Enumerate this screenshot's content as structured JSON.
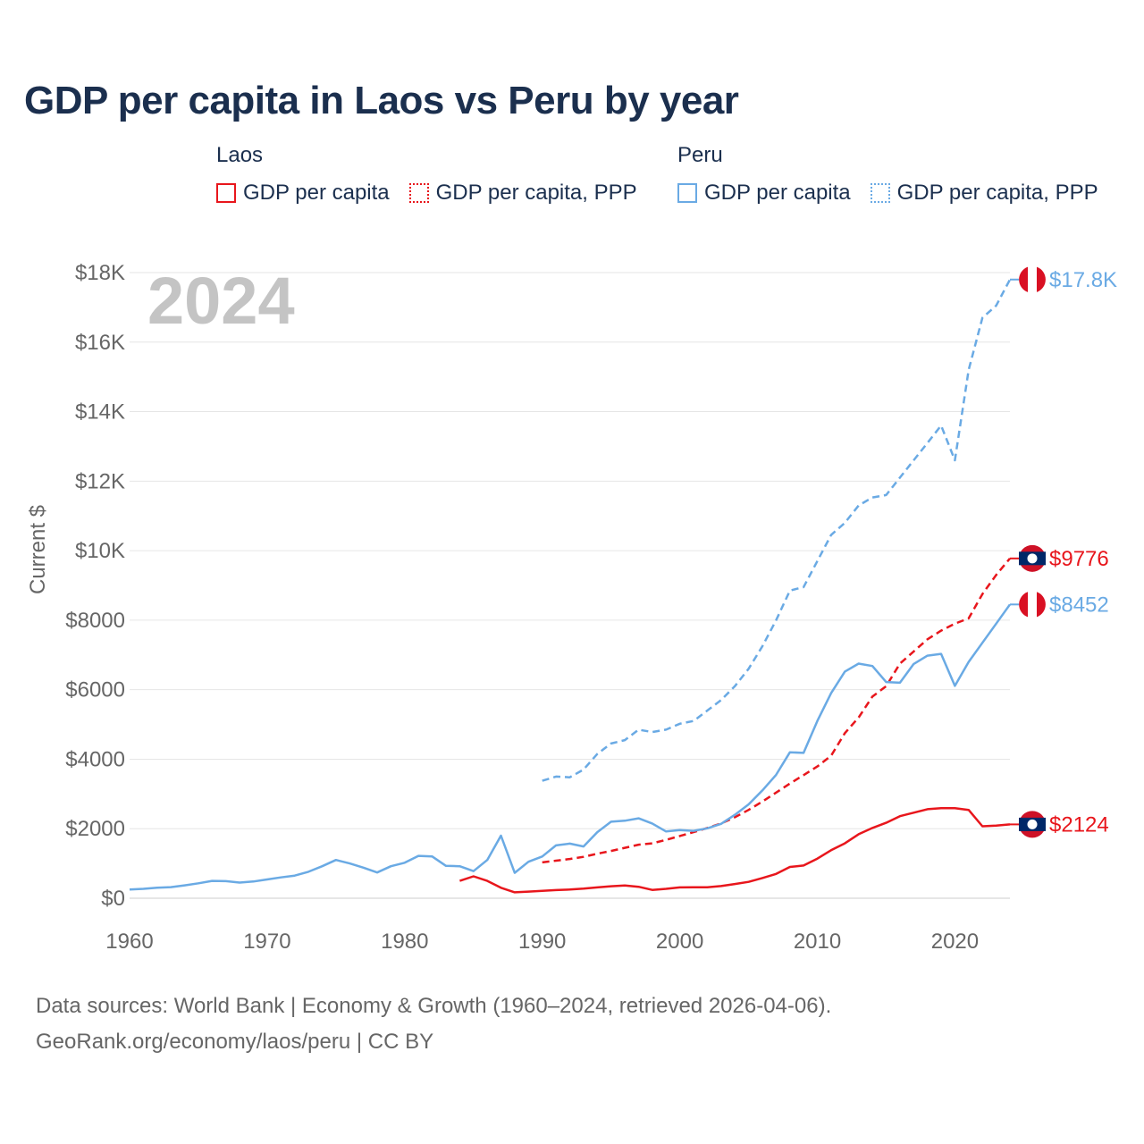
{
  "title": "GDP per capita in Laos vs Peru by year",
  "legend": {
    "groups": [
      {
        "name": "Laos",
        "items": [
          {
            "label": "GDP per capita",
            "color": "#e8161c",
            "style": "solid"
          },
          {
            "label": "GDP per capita, PPP",
            "color": "#e8161c",
            "style": "dotted"
          }
        ]
      },
      {
        "name": "Peru",
        "items": [
          {
            "label": "GDP per capita",
            "color": "#6aaae4",
            "style": "solid"
          },
          {
            "label": "GDP per capita, PPP",
            "color": "#6aaae4",
            "style": "dotted"
          }
        ]
      }
    ]
  },
  "footer": {
    "line1": "Data sources: World Bank | Economy & Growth (1960–2024, retrieved 2026-04-06).",
    "line2": "GeoRank.org/economy/laos/peru | CC BY"
  },
  "chart_data": {
    "type": "line",
    "year_label": "2024",
    "ylabel": "Current $",
    "xlim": [
      1960,
      2024
    ],
    "ylim": [
      0,
      18000
    ],
    "x_ticks": [
      1960,
      1970,
      1980,
      1990,
      2000,
      2010,
      2020
    ],
    "x_tick_labels": [
      "1960",
      "1970",
      "1980",
      "1990",
      "2000",
      "2010",
      "2020"
    ],
    "y_ticks": [
      0,
      2000,
      4000,
      6000,
      8000,
      10000,
      12000,
      14000,
      16000,
      18000
    ],
    "y_tick_labels": [
      "$0",
      "$2000",
      "$4000",
      "$6000",
      "$8000",
      "$10K",
      "$12K",
      "$14K",
      "$16K",
      "$18K"
    ],
    "colors": {
      "laos": "#e8161c",
      "peru": "#6aaae4",
      "grid": "#e6e6e6",
      "axis_text": "#666666",
      "year_watermark": "#c4c4c4"
    },
    "series": [
      {
        "name": "Laos GDP per capita",
        "country": "laos",
        "color": "#e8161c",
        "dashed": false,
        "end_label": "$2124",
        "x": [
          1984,
          1985,
          1986,
          1987,
          1988,
          1989,
          1990,
          1991,
          1992,
          1993,
          1994,
          1995,
          1996,
          1997,
          1998,
          1999,
          2000,
          2001,
          2002,
          2003,
          2004,
          2005,
          2006,
          2007,
          2008,
          2009,
          2010,
          2011,
          2012,
          2013,
          2014,
          2015,
          2016,
          2017,
          2018,
          2019,
          2020,
          2021,
          2022,
          2023,
          2024
        ],
        "y": [
          500,
          630,
          500,
          300,
          170,
          190,
          210,
          235,
          250,
          275,
          310,
          345,
          365,
          330,
          240,
          270,
          310,
          315,
          315,
          350,
          410,
          470,
          580,
          700,
          900,
          940,
          1140,
          1380,
          1580,
          1840,
          2020,
          2170,
          2360,
          2460,
          2560,
          2590,
          2590,
          2540,
          2070,
          2090,
          2124
        ]
      },
      {
        "name": "Laos GDP per capita, PPP",
        "country": "laos",
        "color": "#e8161c",
        "dashed": true,
        "end_label": "$9776",
        "x": [
          1990,
          1991,
          1992,
          1993,
          1994,
          1995,
          1996,
          1997,
          1998,
          1999,
          2000,
          2001,
          2002,
          2003,
          2004,
          2005,
          2006,
          2007,
          2008,
          2009,
          2010,
          2011,
          2012,
          2013,
          2014,
          2015,
          2016,
          2017,
          2018,
          2019,
          2020,
          2021,
          2022,
          2023,
          2024
        ],
        "y": [
          1030,
          1080,
          1130,
          1190,
          1280,
          1360,
          1450,
          1540,
          1580,
          1680,
          1790,
          1900,
          2020,
          2150,
          2330,
          2540,
          2780,
          3040,
          3300,
          3540,
          3790,
          4100,
          4750,
          5200,
          5800,
          6100,
          6750,
          7100,
          7450,
          7700,
          7900,
          8050,
          8750,
          9300,
          9776
        ]
      },
      {
        "name": "Peru GDP per capita",
        "country": "peru",
        "color": "#6aaae4",
        "dashed": false,
        "end_label": "$8452",
        "x": [
          1960,
          1961,
          1962,
          1963,
          1964,
          1965,
          1966,
          1967,
          1968,
          1969,
          1970,
          1971,
          1972,
          1973,
          1974,
          1975,
          1976,
          1977,
          1978,
          1979,
          1980,
          1981,
          1982,
          1983,
          1984,
          1985,
          1986,
          1987,
          1988,
          1989,
          1990,
          1991,
          1992,
          1993,
          1994,
          1995,
          1996,
          1997,
          1998,
          1999,
          2000,
          2001,
          2002,
          2003,
          2004,
          2005,
          2006,
          2007,
          2008,
          2009,
          2010,
          2011,
          2012,
          2013,
          2014,
          2015,
          2016,
          2017,
          2018,
          2019,
          2020,
          2021,
          2022,
          2023,
          2024
        ],
        "y": [
          250,
          270,
          300,
          320,
          370,
          430,
          500,
          490,
          450,
          480,
          540,
          600,
          650,
          760,
          920,
          1100,
          1000,
          880,
          740,
          920,
          1020,
          1220,
          1200,
          930,
          920,
          780,
          1100,
          1800,
          730,
          1050,
          1200,
          1520,
          1570,
          1490,
          1900,
          2200,
          2230,
          2300,
          2150,
          1920,
          1960,
          1940,
          2010,
          2140,
          2400,
          2700,
          3100,
          3550,
          4200,
          4180,
          5100,
          5900,
          6520,
          6750,
          6680,
          6220,
          6200,
          6740,
          6980,
          7030,
          6110,
          6800,
          7350,
          7900,
          8452
        ]
      },
      {
        "name": "Peru GDP per capita, PPP",
        "country": "peru",
        "color": "#6aaae4",
        "dashed": true,
        "end_label": "$17.8K",
        "x": [
          1990,
          1991,
          1992,
          1993,
          1994,
          1995,
          1996,
          1997,
          1998,
          1999,
          2000,
          2001,
          2002,
          2003,
          2004,
          2005,
          2006,
          2007,
          2008,
          2009,
          2010,
          2011,
          2012,
          2013,
          2014,
          2015,
          2016,
          2017,
          2018,
          2019,
          2020,
          2021,
          2022,
          2023,
          2024
        ],
        "y": [
          3380,
          3500,
          3480,
          3700,
          4150,
          4450,
          4550,
          4850,
          4780,
          4850,
          5020,
          5100,
          5400,
          5700,
          6100,
          6600,
          7250,
          8000,
          8850,
          8950,
          9700,
          10450,
          10800,
          11300,
          11530,
          11600,
          12100,
          12600,
          13100,
          13600,
          12600,
          15200,
          16700,
          17050,
          17800
        ]
      }
    ]
  }
}
